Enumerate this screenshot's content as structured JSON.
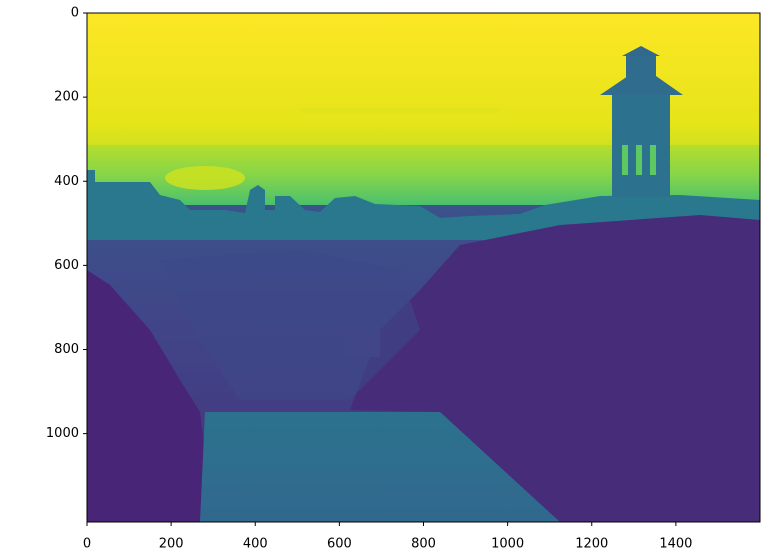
{
  "chart_data": {
    "type": "image",
    "xlim": [
      0,
      1600
    ],
    "ylim": [
      1200,
      0
    ],
    "xticks": [
      0,
      200,
      400,
      600,
      800,
      1000,
      1200,
      1400
    ],
    "yticks": [
      0,
      200,
      400,
      600,
      800,
      1000
    ]
  }
}
